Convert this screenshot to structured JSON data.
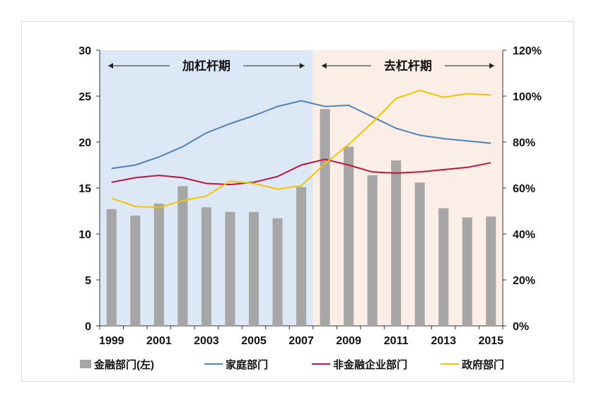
{
  "chart_data": {
    "type": "bar+line",
    "title": "",
    "categories": [
      "1999",
      "2000",
      "2001",
      "2002",
      "2003",
      "2004",
      "2005",
      "2006",
      "2007",
      "2008",
      "2009",
      "2010",
      "2011",
      "2012",
      "2013",
      "2014",
      "2015"
    ],
    "x_tick_labels": [
      "1999",
      "2001",
      "2003",
      "2005",
      "2007",
      "2009",
      "2011",
      "2013",
      "2015"
    ],
    "left_axis": {
      "ylim": [
        0,
        30
      ],
      "ticks": [
        "0",
        "5",
        "10",
        "15",
        "20",
        "25",
        "30"
      ]
    },
    "right_axis": {
      "ylim": [
        0,
        1.2
      ],
      "ticks": [
        "0%",
        "20%",
        "40%",
        "60%",
        "80%",
        "100%",
        "120%"
      ]
    },
    "grid": false,
    "legend_position": "bottom",
    "regions": [
      {
        "label": "加杠杆期",
        "from": "1999",
        "to": "2007",
        "color": "#dce8f6"
      },
      {
        "label": "去杠杆期",
        "from": "2008",
        "to": "2015",
        "color": "#fbeee6"
      }
    ],
    "series": [
      {
        "name": "金融部门(左)",
        "type": "bar",
        "axis": "left",
        "color": "#a6a6a6",
        "values": [
          12.7,
          12.0,
          13.3,
          15.2,
          12.9,
          12.4,
          12.4,
          11.7,
          15.1,
          23.6,
          19.5,
          16.4,
          18.0,
          15.6,
          12.8,
          11.8,
          11.9
        ]
      },
      {
        "name": "家庭部门",
        "type": "line",
        "axis": "right",
        "color": "#4f81bd",
        "values": [
          0.685,
          0.7,
          0.735,
          0.78,
          0.84,
          0.88,
          0.915,
          0.955,
          0.98,
          0.955,
          0.96,
          0.91,
          0.86,
          0.83,
          0.815,
          0.805,
          0.795
        ]
      },
      {
        "name": "非金融企业部门",
        "type": "line",
        "axis": "right",
        "color": "#c0143c",
        "values": [
          0.625,
          0.645,
          0.655,
          0.645,
          0.62,
          0.615,
          0.625,
          0.65,
          0.7,
          0.725,
          0.7,
          0.67,
          0.665,
          0.67,
          0.68,
          0.69,
          0.71
        ]
      },
      {
        "name": "政府部门",
        "type": "line",
        "axis": "right",
        "color": "#f2c400",
        "values": [
          0.555,
          0.52,
          0.515,
          0.545,
          0.565,
          0.63,
          0.62,
          0.595,
          0.61,
          0.705,
          0.79,
          0.885,
          0.99,
          1.025,
          0.995,
          1.01,
          1.005
        ]
      }
    ]
  }
}
